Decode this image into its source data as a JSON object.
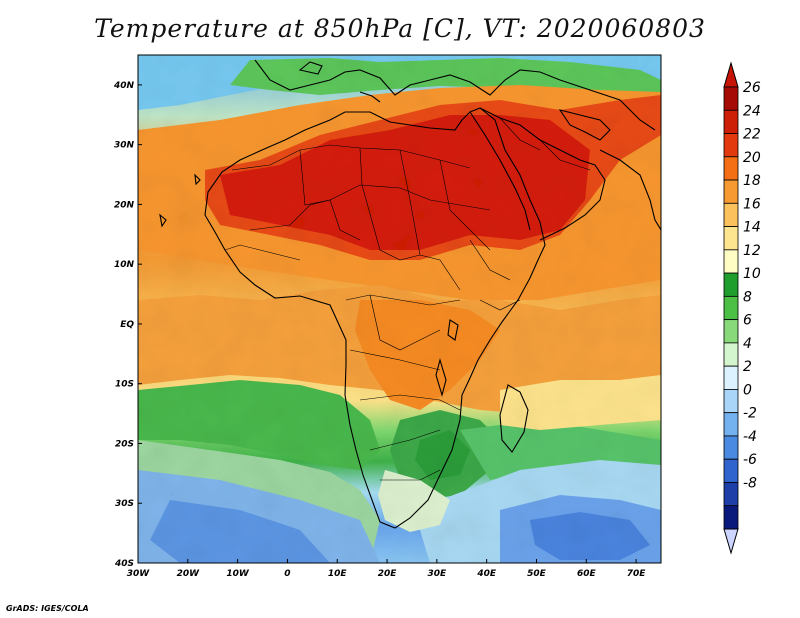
{
  "title": "Temperature at 850hPa [C], VT: 2020060803",
  "credit": "GrADS: IGES/COLA",
  "map": {
    "variable": "Temperature at 850hPa",
    "units": "C",
    "valid_time": "2020060803",
    "lon_range": [
      -30,
      75
    ],
    "lat_range": [
      -40,
      45
    ],
    "lon_ticks": [
      "30W",
      "20W",
      "10W",
      "0",
      "10E",
      "20E",
      "30E",
      "40E",
      "50E",
      "60E",
      "70E"
    ],
    "lat_ticks": [
      "40N",
      "30N",
      "20N",
      "10N",
      "EQ",
      "10S",
      "20S",
      "30S",
      "40S"
    ]
  },
  "colorbar": {
    "labels": [
      "26",
      "24",
      "22",
      "20",
      "18",
      "16",
      "14",
      "12",
      "10",
      "8",
      "6",
      "4",
      "2",
      "0",
      "-2",
      "-4",
      "-6",
      "-8"
    ],
    "colors": [
      "#a50a05",
      "#cc1f06",
      "#e3390f",
      "#f46e14",
      "#f79a32",
      "#fbc15c",
      "#fde48e",
      "#fffcc4",
      "#1f9d2d",
      "#4cbf45",
      "#88d97a",
      "#d3f6ce",
      "#ddf2ff",
      "#a8d5f8",
      "#74b1ef",
      "#4a8ae0",
      "#2f63cd",
      "#1f3fa8",
      "#0a1a7c"
    ],
    "top_arrow_color": "#c61506",
    "bottom_arrow_color": "#ccd5ff"
  }
}
